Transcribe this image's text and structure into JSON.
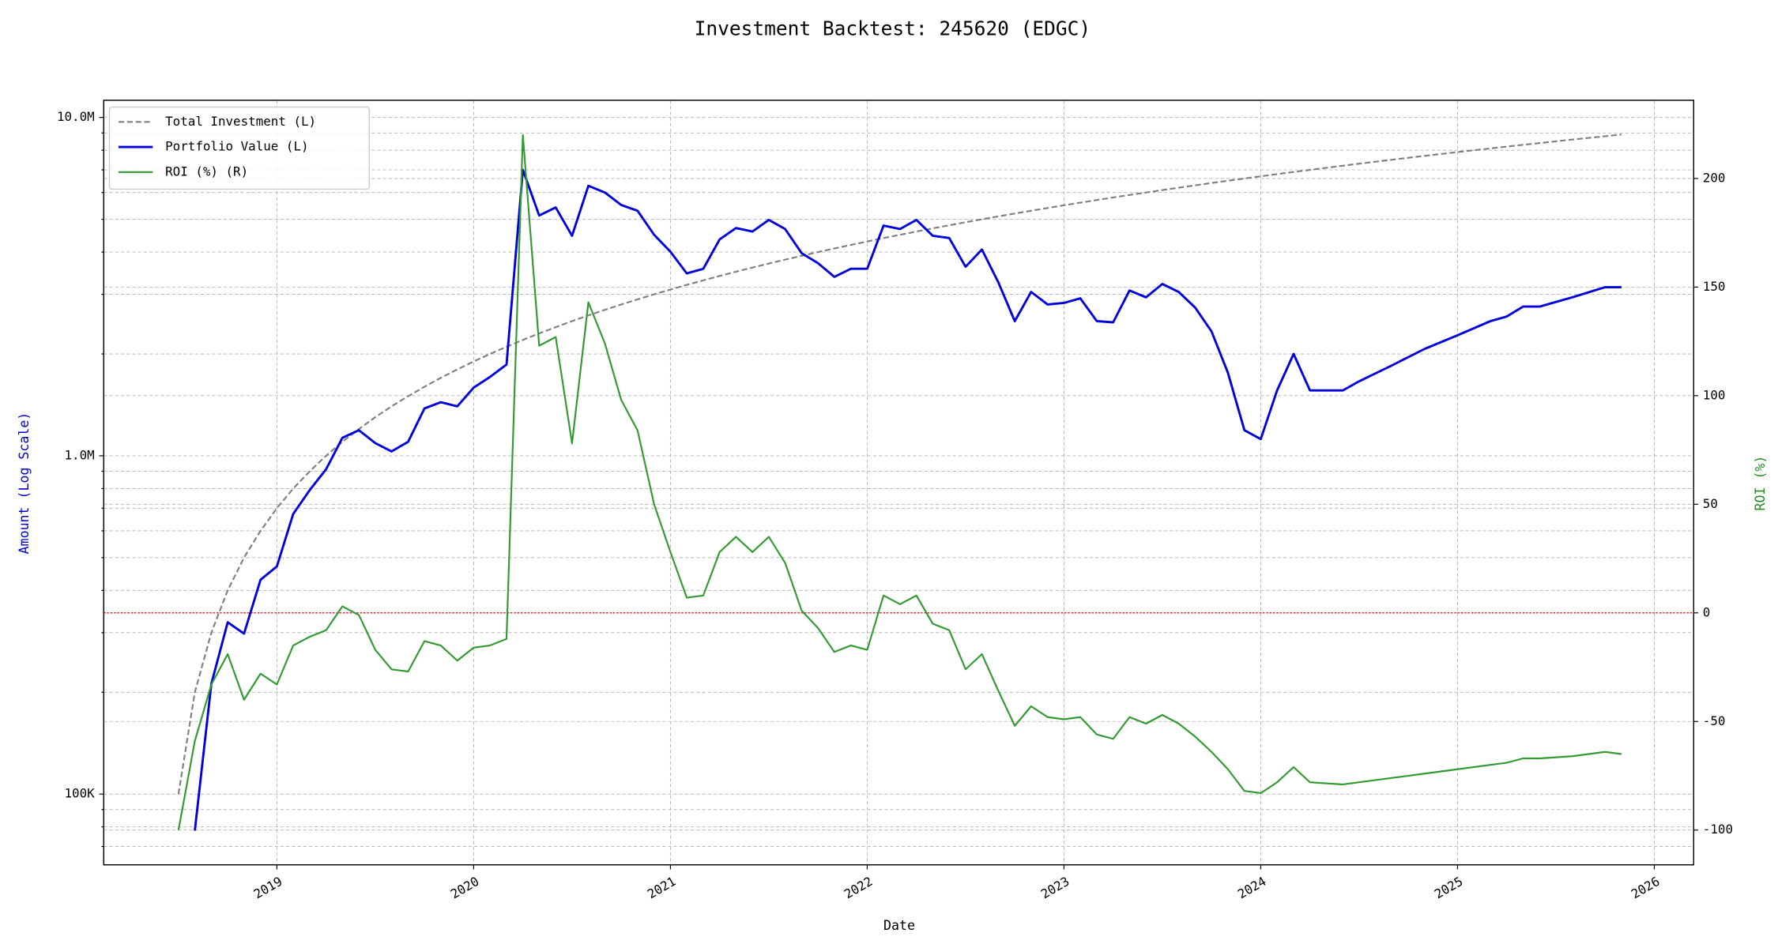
{
  "chart_data": {
    "type": "line",
    "title": "Investment Backtest: 245620 (EDGC)",
    "x_label": "Date",
    "y_label": "Amount (Log Scale)",
    "y2_label": "ROI (%)",
    "y_label_color": "#0000cc",
    "y2_label_color": "#228b22",
    "y_log": true,
    "grid": true,
    "legend": "upper left",
    "xlim": [
      2018.12,
      2026.2
    ],
    "xticks": [
      2019,
      2020,
      2021,
      2022,
      2023,
      2024,
      2025,
      2026
    ],
    "ylim": [
      61800,
      11240000
    ],
    "yticks": [
      {
        "value": 100000,
        "label": "100K"
      },
      {
        "value": 1000000,
        "label": "1.0M"
      },
      {
        "value": 10000000,
        "label": "10.0M"
      }
    ],
    "yminorticks": [
      70000,
      80000,
      90000,
      200000,
      300000,
      400000,
      500000,
      600000,
      700000,
      800000,
      900000,
      2000000,
      3000000,
      4000000,
      5000000,
      6000000,
      7000000,
      8000000,
      9000000
    ],
    "y2lim": [
      -116,
      236
    ],
    "y2ticks": [
      -100,
      -50,
      0,
      50,
      100,
      150,
      200
    ],
    "reference_line": {
      "axis": "y2",
      "value": 0,
      "color": "#d62728"
    },
    "x": [
      2018.5,
      2018.583,
      2018.667,
      2018.75,
      2018.833,
      2018.917,
      2019.0,
      2019.083,
      2019.167,
      2019.25,
      2019.333,
      2019.417,
      2019.5,
      2019.583,
      2019.667,
      2019.75,
      2019.833,
      2019.917,
      2020.0,
      2020.083,
      2020.167,
      2020.25,
      2020.333,
      2020.417,
      2020.5,
      2020.583,
      2020.667,
      2020.75,
      2020.833,
      2020.917,
      2021.0,
      2021.083,
      2021.167,
      2021.25,
      2021.333,
      2021.417,
      2021.5,
      2021.583,
      2021.667,
      2021.75,
      2021.833,
      2021.917,
      2022.0,
      2022.083,
      2022.167,
      2022.25,
      2022.333,
      2022.417,
      2022.5,
      2022.583,
      2022.667,
      2022.75,
      2022.833,
      2022.917,
      2023.0,
      2023.083,
      2023.167,
      2023.25,
      2023.333,
      2023.417,
      2023.5,
      2023.583,
      2023.667,
      2023.75,
      2023.833,
      2023.917,
      2024.0,
      2024.083,
      2024.167,
      2024.25,
      2024.417,
      2024.5,
      2024.667,
      2024.833,
      2025.0,
      2025.167,
      2025.25,
      2025.333,
      2025.417,
      2025.583,
      2025.75,
      2025.833
    ],
    "series": [
      {
        "name": "Total Investment (L)",
        "color": "#808080",
        "style": "dashed",
        "width": 1.5,
        "axis": "y",
        "values": [
          100000,
          200000,
          300000,
          400000,
          500000,
          600000,
          700000,
          800000,
          900000,
          1000000,
          1100000,
          1200000,
          1300000,
          1400000,
          1500000,
          1600000,
          1700000,
          1800000,
          1900000,
          2000000,
          2100000,
          2200000,
          2300000,
          2400000,
          2500000,
          2600000,
          2700000,
          2800000,
          2900000,
          3000000,
          3100000,
          3200000,
          3300000,
          3400000,
          3500000,
          3600000,
          3700000,
          3800000,
          3900000,
          4000000,
          4100000,
          4200000,
          4300000,
          4400000,
          4500000,
          4600000,
          4700000,
          4800000,
          4900000,
          5000000,
          5100000,
          5200000,
          5300000,
          5400000,
          5500000,
          5600000,
          5700000,
          5800000,
          5900000,
          6000000,
          6100000,
          6200000,
          6300000,
          6400000,
          6500000,
          6600000,
          6700000,
          6800000,
          6900000,
          7000000,
          7200000,
          7300000,
          7500000,
          7700000,
          7900000,
          8100000,
          8200000,
          8300000,
          8400000,
          8600000,
          8800000,
          8900000
        ]
      },
      {
        "name": "Portfolio Value (L)",
        "color": "#0000dd",
        "style": "solid",
        "width": 2,
        "axis": "y",
        "values": [
          null,
          78000,
          212000,
          322000,
          298000,
          430000,
          471000,
          673000,
          792000,
          912000,
          1130000,
          1190000,
          1090000,
          1030000,
          1100000,
          1380000,
          1440000,
          1400000,
          1590000,
          1710000,
          1860000,
          7000000,
          5130000,
          5420000,
          4470000,
          6280000,
          6000000,
          5510000,
          5300000,
          4500000,
          4010000,
          3460000,
          3570000,
          4360000,
          4710000,
          4600000,
          4980000,
          4680000,
          3970000,
          3710000,
          3380000,
          3570000,
          3570000,
          4790000,
          4680000,
          4980000,
          4470000,
          4400000,
          3620000,
          4070000,
          3250000,
          2500000,
          3050000,
          2800000,
          2830000,
          2920000,
          2500000,
          2480000,
          3080000,
          2940000,
          3220000,
          3050000,
          2740000,
          2330000,
          1760000,
          1190000,
          1120000,
          1560000,
          2000000,
          1560000,
          1560000,
          1660000,
          1850000,
          2070000,
          2270000,
          2500000,
          2580000,
          2760000,
          2760000,
          2940000,
          3150000,
          3150000
        ]
      },
      {
        "name": "ROI (%) (R)",
        "color": "#339933",
        "style": "solid",
        "width": 1.5,
        "axis": "y2",
        "values": [
          -100,
          -59,
          -33,
          -19,
          -40,
          -28,
          -33,
          -15,
          -11,
          -8,
          3,
          -1,
          -17,
          -26,
          -27,
          -13,
          -15,
          -22,
          -16,
          -15,
          -12,
          220,
          123,
          127,
          78,
          143,
          124,
          98,
          84,
          50,
          28,
          7,
          8,
          28,
          35,
          28,
          35,
          23,
          1,
          -7,
          -18,
          -15,
          -17,
          8,
          4,
          8,
          -5,
          -8,
          -26,
          -19,
          -36,
          -52,
          -43,
          -48,
          -49,
          -48,
          -56,
          -58,
          -48,
          -51,
          -47,
          -51,
          -57,
          -64,
          -72,
          -82,
          -83,
          -78,
          -71,
          -78,
          -79,
          -78,
          -76,
          -74,
          -72,
          -70,
          -69,
          -67,
          -67,
          -66,
          -64,
          -65
        ]
      }
    ]
  }
}
